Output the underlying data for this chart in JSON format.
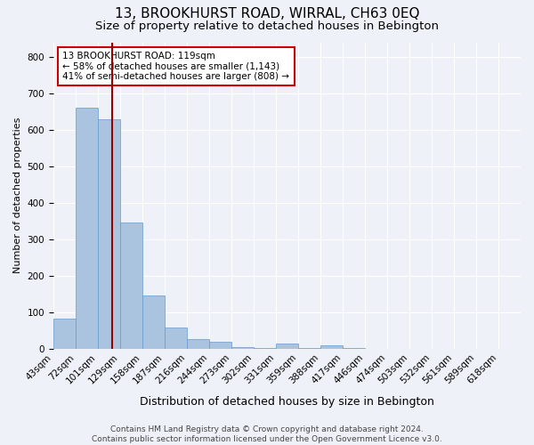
{
  "title": "13, BROOKHURST ROAD, WIRRAL, CH63 0EQ",
  "subtitle": "Size of property relative to detached houses in Bebington",
  "xlabel": "Distribution of detached houses by size in Bebington",
  "ylabel": "Number of detached properties",
  "bar_labels": [
    "43sqm",
    "72sqm",
    "101sqm",
    "129sqm",
    "158sqm",
    "187sqm",
    "216sqm",
    "244sqm",
    "273sqm",
    "302sqm",
    "331sqm",
    "359sqm",
    "388sqm",
    "417sqm",
    "446sqm",
    "474sqm",
    "503sqm",
    "532sqm",
    "561sqm",
    "589sqm",
    "618sqm"
  ],
  "bar_values": [
    83,
    660,
    630,
    345,
    145,
    58,
    27,
    18,
    5,
    2,
    13,
    2,
    8,
    2,
    0,
    0,
    0,
    0,
    0,
    0,
    0
  ],
  "bar_color": "#aac4df",
  "bar_edge_color": "#6699cc",
  "vline_color": "#990000",
  "annotation_text": "13 BROOKHURST ROAD: 119sqm\n← 58% of detached houses are smaller (1,143)\n41% of semi-detached houses are larger (808) →",
  "annotation_box_color": "#ffffff",
  "annotation_box_edge": "#cc0000",
  "ylim": [
    0,
    840
  ],
  "yticks": [
    0,
    100,
    200,
    300,
    400,
    500,
    600,
    700,
    800
  ],
  "bg_color": "#eef2f8",
  "footer_line1": "Contains HM Land Registry data © Crown copyright and database right 2024.",
  "footer_line2": "Contains public sector information licensed under the Open Government Licence v3.0.",
  "title_fontsize": 11,
  "subtitle_fontsize": 9.5,
  "xlabel_fontsize": 9,
  "ylabel_fontsize": 8,
  "tick_fontsize": 7.5,
  "footer_fontsize": 6.5,
  "annot_fontsize": 7.5
}
